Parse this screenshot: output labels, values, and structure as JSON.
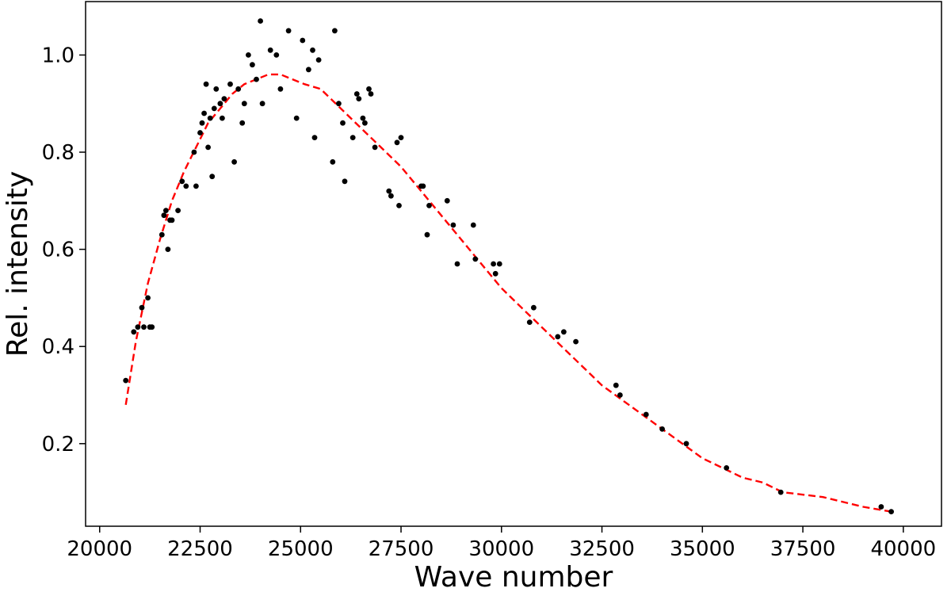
{
  "chart_data": {
    "type": "scatter",
    "title": "",
    "xlabel": "Wave number",
    "ylabel": "Rel. intensity",
    "xlim": [
      19650,
      40950
    ],
    "ylim": [
      0.03,
      1.11
    ],
    "xticks": [
      20000,
      22500,
      25000,
      27500,
      30000,
      32500,
      35000,
      37500,
      40000
    ],
    "xtick_labels": [
      "20000",
      "22500",
      "25000",
      "27500",
      "30000",
      "32500",
      "35000",
      "37500",
      "40000"
    ],
    "yticks": [
      0.2,
      0.4,
      0.6,
      0.8,
      1.0
    ],
    "ytick_labels": [
      "0.2",
      "0.4",
      "0.6",
      "0.8",
      "1.0"
    ],
    "grid": false,
    "legend": "none",
    "colors": {
      "points": "#000000",
      "fit": "#ff0000"
    },
    "series": [
      {
        "kind": "scatter",
        "x": [
          20650,
          20850,
          20950,
          21050,
          21100,
          21200,
          21250,
          21300,
          21550,
          21600,
          21650,
          21700,
          21750,
          21800,
          21950,
          22050,
          22150,
          22350,
          22400,
          22500,
          22550,
          22600,
          22650,
          22700,
          22750,
          22800,
          22850,
          22900,
          23000,
          23050,
          23100,
          23250,
          23350,
          23450,
          23550,
          23600,
          23700,
          23800,
          23900,
          24000,
          24050,
          24250,
          24400,
          24500,
          24700,
          24900,
          25050,
          25200,
          25300,
          25350,
          25450,
          25800,
          25850,
          25950,
          26050,
          26100,
          26300,
          26400,
          26450,
          26550,
          26600,
          26700,
          26750,
          26850,
          27200,
          27250,
          27400,
          27450,
          27500,
          28000,
          28050,
          28150,
          28200,
          28650,
          28800,
          28900,
          29300,
          29350,
          29800,
          29850,
          29950,
          30700,
          30800,
          31400,
          31550,
          31850,
          32850,
          32950,
          33600,
          34000,
          34600,
          35600,
          36950,
          39450,
          39700
        ],
        "y": [
          0.33,
          0.43,
          0.44,
          0.48,
          0.44,
          0.5,
          0.44,
          0.44,
          0.63,
          0.67,
          0.68,
          0.6,
          0.66,
          0.66,
          0.68,
          0.74,
          0.73,
          0.8,
          0.73,
          0.84,
          0.86,
          0.88,
          0.94,
          0.81,
          0.87,
          0.75,
          0.89,
          0.93,
          0.9,
          0.87,
          0.91,
          0.94,
          0.78,
          0.93,
          0.86,
          0.9,
          1.0,
          0.98,
          0.95,
          1.07,
          0.9,
          1.01,
          1.0,
          0.93,
          1.05,
          0.87,
          1.03,
          0.97,
          1.01,
          0.83,
          0.99,
          0.78,
          1.05,
          0.9,
          0.86,
          0.74,
          0.83,
          0.92,
          0.91,
          0.87,
          0.86,
          0.93,
          0.92,
          0.81,
          0.72,
          0.71,
          0.82,
          0.69,
          0.83,
          0.73,
          0.73,
          0.63,
          0.69,
          0.7,
          0.65,
          0.57,
          0.65,
          0.58,
          0.57,
          0.55,
          0.57,
          0.45,
          0.48,
          0.42,
          0.43,
          0.41,
          0.32,
          0.3,
          0.26,
          0.23,
          0.2,
          0.15,
          0.1,
          0.07,
          0.06
        ]
      },
      {
        "kind": "line",
        "style": "dashed",
        "x": [
          20650,
          20900,
          21200,
          21500,
          21800,
          22100,
          22400,
          22700,
          23000,
          23300,
          23600,
          23900,
          24200,
          24500,
          24800,
          25100,
          25500,
          26000,
          26500,
          27000,
          27500,
          28000,
          28500,
          29000,
          29500,
          30000,
          30500,
          31000,
          31500,
          32000,
          32500,
          33000,
          33500,
          34000,
          34500,
          35000,
          35500,
          36000,
          36500,
          37000,
          38000,
          39000,
          39700
        ],
        "y": [
          0.28,
          0.41,
          0.53,
          0.62,
          0.7,
          0.76,
          0.81,
          0.86,
          0.89,
          0.92,
          0.94,
          0.95,
          0.96,
          0.96,
          0.95,
          0.94,
          0.93,
          0.89,
          0.85,
          0.81,
          0.77,
          0.72,
          0.67,
          0.62,
          0.57,
          0.52,
          0.48,
          0.44,
          0.4,
          0.36,
          0.32,
          0.29,
          0.26,
          0.23,
          0.2,
          0.17,
          0.15,
          0.13,
          0.12,
          0.1,
          0.09,
          0.07,
          0.06
        ]
      }
    ]
  }
}
